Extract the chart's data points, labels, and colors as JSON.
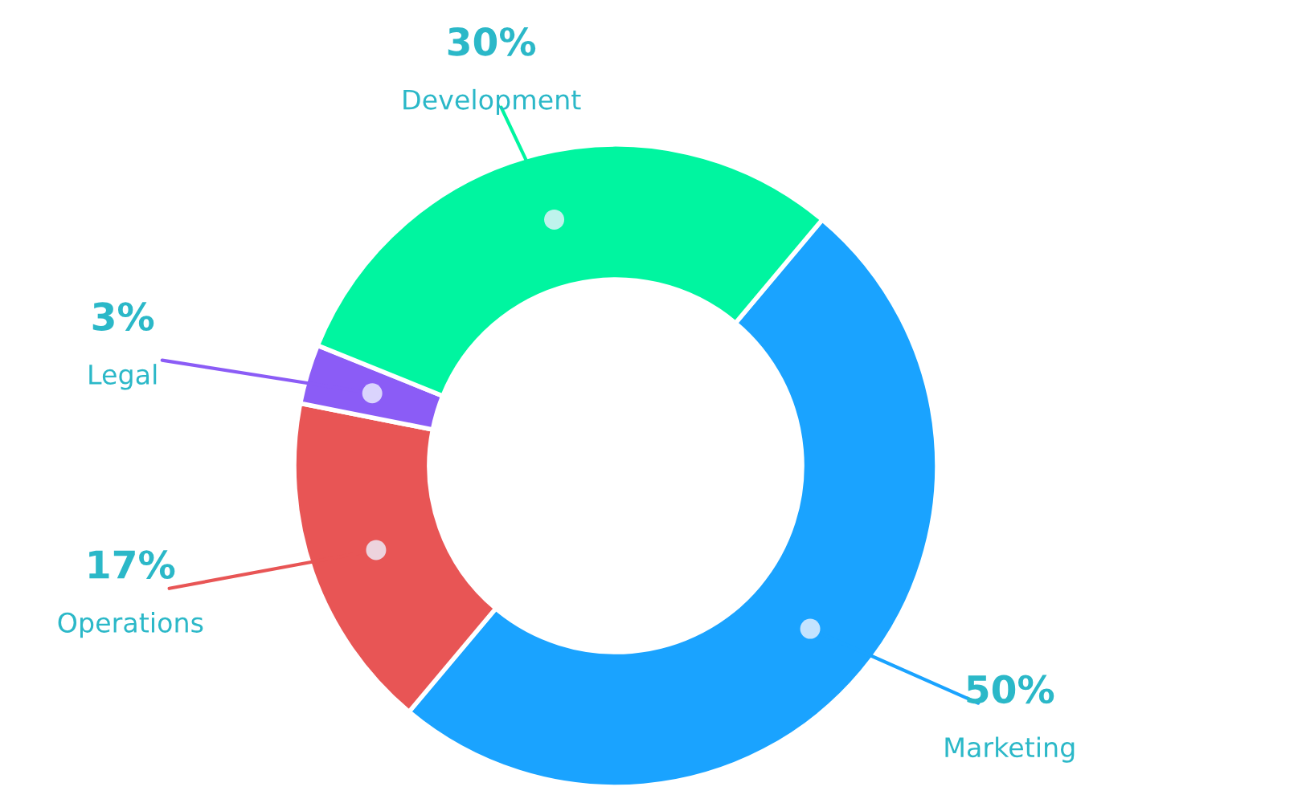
{
  "chart_data": {
    "type": "donut",
    "categories": [
      "Marketing",
      "Operations",
      "Legal",
      "Development"
    ],
    "values": [
      50,
      17,
      3,
      30
    ],
    "value_labels": [
      "50%",
      "17%",
      "3%",
      "30%"
    ],
    "colors": [
      "#1aa3ff",
      "#e85555",
      "#8b5cf6",
      "#00f5a0"
    ],
    "legend": false
  }
}
